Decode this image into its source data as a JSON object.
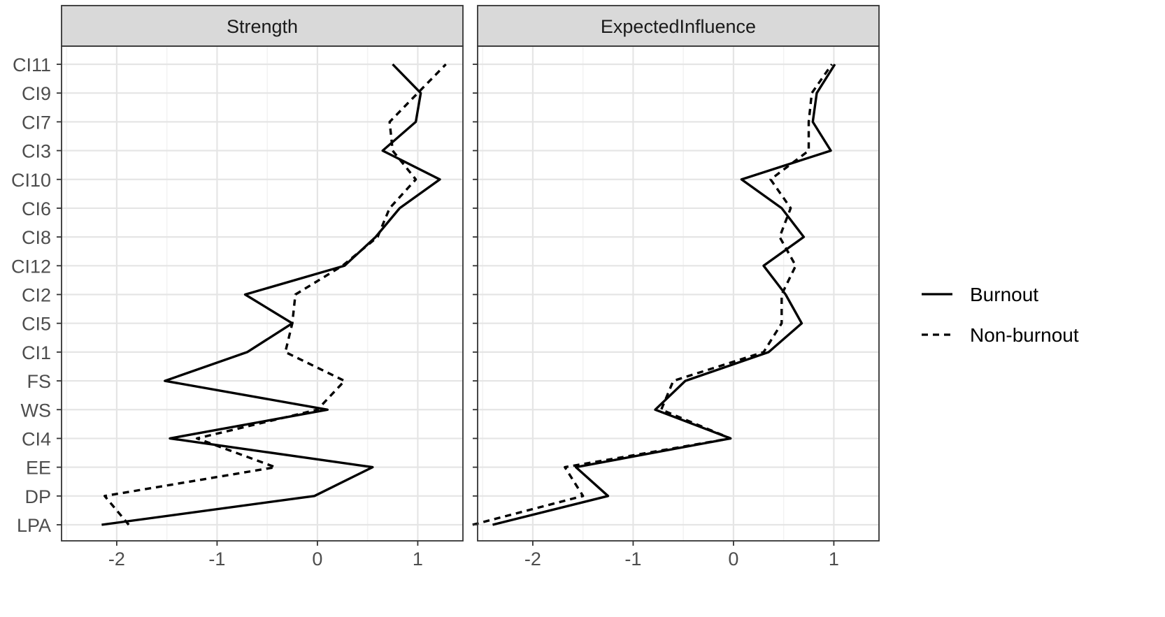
{
  "chart_data": {
    "type": "line",
    "categories": [
      "LPA",
      "DP",
      "EE",
      "CI4",
      "WS",
      "FS",
      "CI1",
      "CI5",
      "CI2",
      "CI12",
      "CI8",
      "CI6",
      "CI10",
      "CI3",
      "CI7",
      "CI9",
      "CI11"
    ],
    "xlim": [
      -2.55,
      1.45
    ],
    "x_ticks": [
      -2,
      -1,
      0,
      1
    ],
    "x_tick_labels": [
      "-2",
      "-1",
      "0",
      "1"
    ],
    "grid": true,
    "legend_position": "right",
    "colors": {
      "line": "#000000",
      "strip_bg": "#d9d9d9",
      "grid_major": "#e5e5e5",
      "grid_minor": "#f2f2f2",
      "axis_text": "#4d4d4d",
      "panel_border": "#333333"
    },
    "panels": [
      {
        "title": "Strength",
        "series": [
          {
            "name": "Burnout",
            "dash": "solid",
            "values": [
              -2.15,
              -0.03,
              0.55,
              -1.47,
              0.1,
              -1.52,
              -0.7,
              -0.25,
              -0.72,
              0.27,
              0.58,
              0.82,
              1.22,
              0.65,
              0.98,
              1.03,
              0.75
            ]
          },
          {
            "name": "Non-burnout",
            "dash": "dashed",
            "values": [
              -1.88,
              -2.12,
              -0.42,
              -1.2,
              0.0,
              0.27,
              -0.32,
              -0.25,
              -0.22,
              0.25,
              0.6,
              0.72,
              0.98,
              0.75,
              0.72,
              1.0,
              1.28
            ]
          }
        ]
      },
      {
        "title": "ExpectedInfluence",
        "series": [
          {
            "name": "Burnout",
            "dash": "solid",
            "values": [
              -2.4,
              -1.25,
              -1.57,
              -0.03,
              -0.78,
              -0.48,
              0.35,
              0.68,
              0.52,
              0.3,
              0.7,
              0.48,
              0.08,
              0.97,
              0.79,
              0.83,
              1.01
            ]
          },
          {
            "name": "Non-burnout",
            "dash": "dashed",
            "values": [
              -2.6,
              -1.5,
              -1.68,
              -0.03,
              -0.72,
              -0.6,
              0.3,
              0.48,
              0.48,
              0.62,
              0.46,
              0.57,
              0.37,
              0.75,
              0.75,
              0.78,
              0.98
            ]
          }
        ]
      }
    ]
  }
}
